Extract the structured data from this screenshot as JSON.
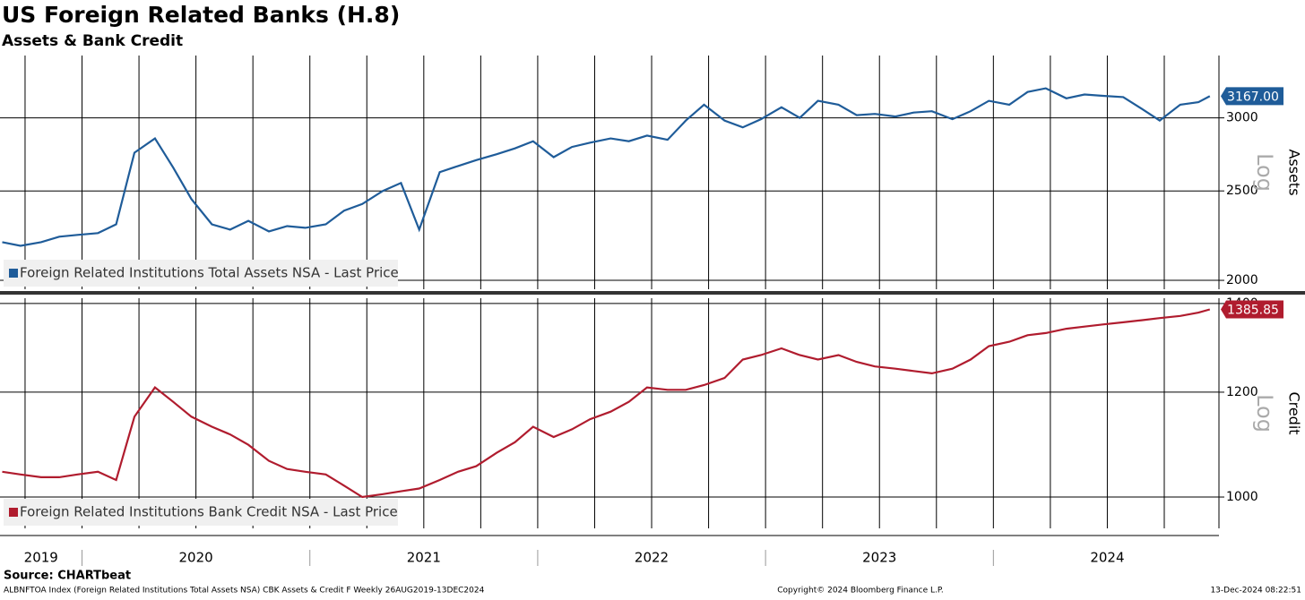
{
  "title": "US Foreign Related Banks (H.8)",
  "subtitle": "Assets & Bank Credit",
  "source": "Source: CHARTbeat",
  "footer_left": "ALBNFTOA Index (Foreign Related Institutions Total Assets NSA) CBK Assets & Credit F  Weekly 26AUG2019-13DEC2024",
  "footer_center": "Copyright© 2024 Bloomberg Finance L.P.",
  "footer_right": "13-Dec-2024 08:22:51",
  "chart_data": [
    {
      "type": "line",
      "ylabel": "Assets",
      "scale_label": "Log",
      "log": true,
      "grid": true,
      "xlim": [
        2019.64,
        2024.99
      ],
      "ylim": [
        1956,
        3505
      ],
      "yticks": [
        2000,
        2500,
        3000
      ],
      "xgrid": [
        2019.75,
        2020,
        2020.25,
        2020.5,
        2020.75,
        2021,
        2021.25,
        2021.5,
        2021.75,
        2022,
        2022.25,
        2022.5,
        2022.75,
        2023,
        2023.25,
        2023.5,
        2023.75,
        2024,
        2024.25,
        2024.5,
        2024.75
      ],
      "x": [
        2019.65,
        2019.73,
        2019.82,
        2019.9,
        2019.98,
        2020.07,
        2020.15,
        2020.23,
        2020.32,
        2020.4,
        2020.48,
        2020.57,
        2020.65,
        2020.73,
        2020.82,
        2020.9,
        2020.98,
        2021.07,
        2021.15,
        2021.23,
        2021.32,
        2021.4,
        2021.48,
        2021.57,
        2021.65,
        2021.73,
        2021.82,
        2021.9,
        2021.98,
        2022.07,
        2022.15,
        2022.23,
        2022.32,
        2022.4,
        2022.48,
        2022.57,
        2022.65,
        2022.73,
        2022.82,
        2022.9,
        2022.98,
        2023.07,
        2023.15,
        2023.23,
        2023.32,
        2023.4,
        2023.48,
        2023.57,
        2023.65,
        2023.73,
        2023.82,
        2023.9,
        2023.98,
        2024.07,
        2024.15,
        2024.23,
        2024.32,
        2024.4,
        2024.48,
        2024.57,
        2024.65,
        2024.73,
        2024.82,
        2024.9,
        2024.95
      ],
      "series": [
        {
          "name": "Foreign Related Institutions Total Assets NSA - Last Price",
          "color": "#1f5c99",
          "values": [
            2200,
            2180,
            2200,
            2230,
            2240,
            2250,
            2300,
            2750,
            2850,
            2650,
            2450,
            2300,
            2270,
            2320,
            2260,
            2290,
            2280,
            2300,
            2380,
            2420,
            2500,
            2550,
            2270,
            2620,
            2660,
            2700,
            2740,
            2780,
            2830,
            2720,
            2790,
            2820,
            2850,
            2830,
            2870,
            2840,
            2980,
            3100,
            2980,
            2930,
            2990,
            3080,
            3000,
            3130,
            3100,
            3020,
            3030,
            3010,
            3040,
            3050,
            2990,
            3050,
            3130,
            3100,
            3200,
            3230,
            3150,
            3180,
            3170,
            3160,
            3070,
            2980,
            3100,
            3120,
            3167
          ],
          "value_labels": [
            null,
            null,
            null,
            null,
            null,
            null,
            null,
            null,
            null,
            null,
            null,
            null,
            null,
            null,
            null,
            null,
            null,
            null,
            null,
            null,
            null,
            null,
            null,
            null,
            null,
            null,
            null,
            null,
            null,
            null,
            null,
            null,
            null,
            null,
            null,
            null,
            null,
            null,
            null,
            null,
            null,
            null,
            null,
            null,
            null,
            null,
            null,
            null,
            null,
            null,
            null,
            null,
            null,
            null,
            null,
            null,
            null,
            null,
            null,
            null,
            null,
            null,
            null,
            null,
            "3167.00"
          ]
        }
      ]
    },
    {
      "type": "line",
      "ylabel": "Credit",
      "scale_label": "Log",
      "log": true,
      "grid": true,
      "xlim": [
        2019.64,
        2024.99
      ],
      "ylim": [
        947,
        1413
      ],
      "yticks": [
        1000,
        1200,
        1400
      ],
      "xticks": [
        {
          "value": 2019.82,
          "label": "2019"
        },
        {
          "value": 2020.5,
          "label": "2020"
        },
        {
          "value": 2021.5,
          "label": "2021"
        },
        {
          "value": 2022.5,
          "label": "2022"
        },
        {
          "value": 2023.5,
          "label": "2023"
        },
        {
          "value": 2024.5,
          "label": "2024"
        }
      ],
      "xgrid": [
        2019.75,
        2020,
        2020.25,
        2020.5,
        2020.75,
        2021,
        2021.25,
        2021.5,
        2021.75,
        2022,
        2022.25,
        2022.5,
        2022.75,
        2023,
        2023.25,
        2023.5,
        2023.75,
        2024,
        2024.25,
        2024.5,
        2024.75
      ],
      "x": [
        2019.65,
        2019.73,
        2019.82,
        2019.9,
        2019.98,
        2020.07,
        2020.15,
        2020.23,
        2020.32,
        2020.4,
        2020.48,
        2020.57,
        2020.65,
        2020.73,
        2020.82,
        2020.9,
        2020.98,
        2021.07,
        2021.15,
        2021.23,
        2021.32,
        2021.4,
        2021.48,
        2021.57,
        2021.65,
        2021.73,
        2021.82,
        2021.9,
        2021.98,
        2022.07,
        2022.15,
        2022.23,
        2022.32,
        2022.4,
        2022.48,
        2022.57,
        2022.65,
        2022.73,
        2022.82,
        2022.9,
        2022.98,
        2023.07,
        2023.15,
        2023.23,
        2023.32,
        2023.4,
        2023.48,
        2023.57,
        2023.65,
        2023.73,
        2023.82,
        2023.9,
        2023.98,
        2024.07,
        2024.15,
        2024.23,
        2024.32,
        2024.4,
        2024.48,
        2024.57,
        2024.65,
        2024.73,
        2024.82,
        2024.9,
        2024.95
      ],
      "series": [
        {
          "name": "Foreign Related Institutions Bank Credit NSA - Last Price",
          "color": "#b01c2e",
          "values": [
            1045,
            1040,
            1035,
            1035,
            1040,
            1045,
            1030,
            1150,
            1210,
            1180,
            1150,
            1130,
            1115,
            1095,
            1065,
            1050,
            1045,
            1040,
            1020,
            1000,
            1005,
            1010,
            1015,
            1030,
            1045,
            1055,
            1080,
            1100,
            1130,
            1110,
            1125,
            1145,
            1160,
            1180,
            1210,
            1205,
            1205,
            1215,
            1230,
            1270,
            1280,
            1295,
            1280,
            1270,
            1280,
            1265,
            1255,
            1250,
            1245,
            1240,
            1250,
            1270,
            1300,
            1310,
            1325,
            1330,
            1340,
            1345,
            1350,
            1355,
            1360,
            1365,
            1370,
            1378,
            1385.85
          ]
        }
      ]
    }
  ]
}
